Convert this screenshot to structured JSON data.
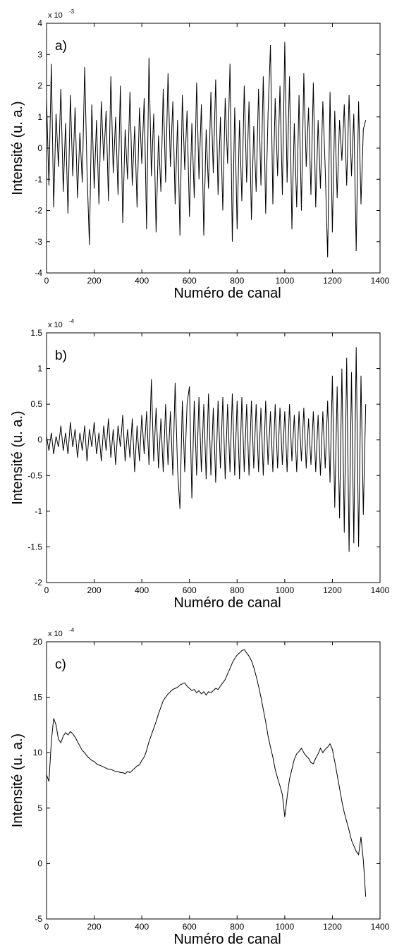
{
  "chart_data": [
    {
      "type": "line",
      "panel_label": "a)",
      "xlabel": "Numéro de canal",
      "ylabel": "Intensité (u. a.)",
      "multiplier": "x 10",
      "exponent": "-3",
      "xlim": [
        0,
        1400
      ],
      "ylim": [
        -4,
        4
      ],
      "xticks": [
        "0",
        "200",
        "400",
        "600",
        "800",
        "1000",
        "1200",
        "1400"
      ],
      "yticks": [
        "-4",
        "-3",
        "-2",
        "-1",
        "0",
        "1",
        "2",
        "3",
        "4"
      ],
      "grid": false,
      "series": [
        {
          "x": [
            0,
            10,
            20,
            30,
            40,
            50,
            60,
            70,
            80,
            90,
            100,
            110,
            120,
            130,
            140,
            150,
            160,
            170,
            180,
            190,
            200,
            210,
            220,
            230,
            240,
            250,
            260,
            270,
            280,
            290,
            300,
            310,
            320,
            330,
            340,
            350,
            360,
            370,
            380,
            390,
            400,
            410,
            420,
            430,
            440,
            450,
            460,
            470,
            480,
            490,
            500,
            510,
            520,
            530,
            540,
            550,
            560,
            570,
            580,
            590,
            600,
            610,
            620,
            630,
            640,
            650,
            660,
            670,
            680,
            690,
            700,
            710,
            720,
            730,
            740,
            750,
            760,
            770,
            780,
            790,
            800,
            810,
            820,
            830,
            840,
            850,
            860,
            870,
            880,
            890,
            900,
            910,
            920,
            930,
            940,
            950,
            960,
            970,
            980,
            990,
            1000,
            1010,
            1020,
            1030,
            1040,
            1050,
            1060,
            1070,
            1080,
            1090,
            1100,
            1110,
            1120,
            1130,
            1140,
            1150,
            1160,
            1170,
            1180,
            1190,
            1200,
            1210,
            1220,
            1230,
            1240,
            1250,
            1260,
            1270,
            1280,
            1290,
            1300,
            1310,
            1320,
            1330,
            1340
          ],
          "y": [
            1.6,
            -1.2,
            2.7,
            -1.9,
            1.1,
            -0.6,
            1.9,
            -1.4,
            0.8,
            -2.1,
            1.7,
            -0.9,
            1.3,
            -1.6,
            0.5,
            -1.1,
            2.6,
            -0.7,
            -3.1,
            1.4,
            -1.3,
            0.9,
            -1.8,
            1.5,
            -0.4,
            1.2,
            -1.7,
            2.3,
            -0.8,
            1.0,
            -1.5,
            2.0,
            -2.4,
            0.6,
            -1.0,
            1.8,
            -1.2,
            0.7,
            -1.9,
            1.3,
            -0.5,
            1.6,
            -2.6,
            2.9,
            -0.9,
            1.1,
            -2.7,
            0.4,
            -1.4,
            1.9,
            -1.1,
            2.4,
            -0.6,
            1.5,
            -1.8,
            0.9,
            -2.8,
            1.7,
            -0.7,
            1.2,
            -2.2,
            0.8,
            -1.6,
            2.1,
            -1.0,
            1.4,
            -2.8,
            0.6,
            -1.3,
            1.8,
            -0.8,
            2.2,
            -1.5,
            1.0,
            -2.0,
            1.6,
            -0.5,
            2.7,
            -3.0,
            1.3,
            -2.6,
            0.9,
            -1.7,
            2.0,
            -1.1,
            1.5,
            -2.3,
            0.7,
            -1.4,
            1.9,
            -1.2,
            2.3,
            -2.1,
            1.1,
            3.3,
            -1.8,
            1.6,
            -0.9,
            2.0,
            -1.5,
            3.4,
            -1.1,
            2.3,
            -2.6,
            0.8,
            -1.9,
            1.7,
            -2.0,
            2.4,
            -0.6,
            1.3,
            -1.5,
            2.1,
            -1.9,
            0.9,
            -1.3,
            1.5,
            -0.7,
            -3.5,
            1.8,
            -2.7,
            1.2,
            -1.6,
            0.9,
            -0.4,
            1.4,
            -1.2,
            1.7,
            -0.9,
            1.1,
            -3.3,
            1.5,
            -1.8,
            0.6,
            0.9
          ]
        }
      ]
    },
    {
      "type": "line",
      "panel_label": "b)",
      "xlabel": "Numéro de canal",
      "ylabel": "Intensité (u. a.)",
      "multiplier": "x 10",
      "exponent": "-4",
      "xlim": [
        0,
        1400
      ],
      "ylim": [
        -2,
        1.5
      ],
      "xticks": [
        "0",
        "200",
        "400",
        "600",
        "800",
        "1000",
        "1200",
        "1400"
      ],
      "yticks": [
        "-2",
        "-1.5",
        "-1",
        "-0.5",
        "0",
        "0.5",
        "1",
        "1.5"
      ],
      "grid": false,
      "series": [
        {
          "x": [
            0,
            10,
            20,
            30,
            40,
            50,
            60,
            70,
            80,
            90,
            100,
            110,
            120,
            130,
            140,
            150,
            160,
            170,
            180,
            190,
            200,
            210,
            220,
            230,
            240,
            250,
            260,
            270,
            280,
            290,
            300,
            310,
            320,
            330,
            340,
            350,
            360,
            370,
            380,
            390,
            400,
            410,
            420,
            430,
            440,
            450,
            460,
            470,
            480,
            490,
            500,
            510,
            520,
            530,
            540,
            550,
            560,
            570,
            580,
            590,
            600,
            610,
            620,
            630,
            640,
            650,
            660,
            670,
            680,
            690,
            700,
            710,
            720,
            730,
            740,
            750,
            760,
            770,
            780,
            790,
            800,
            810,
            820,
            830,
            840,
            850,
            860,
            870,
            880,
            890,
            900,
            910,
            920,
            930,
            940,
            950,
            960,
            970,
            980,
            990,
            1000,
            1010,
            1020,
            1030,
            1040,
            1050,
            1060,
            1070,
            1080,
            1090,
            1100,
            1110,
            1120,
            1130,
            1140,
            1150,
            1160,
            1170,
            1180,
            1190,
            1200,
            1210,
            1220,
            1230,
            1240,
            1250,
            1260,
            1270,
            1280,
            1290,
            1300,
            1310,
            1320,
            1330,
            1340
          ],
          "y": [
            0.05,
            -0.15,
            0.1,
            -0.2,
            0.05,
            -0.1,
            0.2,
            -0.15,
            0.1,
            -0.2,
            0.25,
            -0.1,
            0.15,
            -0.25,
            0.1,
            -0.15,
            0.2,
            -0.3,
            0.15,
            -0.1,
            0.25,
            -0.2,
            0.1,
            -0.3,
            0.2,
            -0.15,
            0.3,
            -0.25,
            0.15,
            -0.35,
            0.2,
            -0.1,
            0.35,
            -0.3,
            0.15,
            -0.25,
            0.3,
            -0.45,
            0.2,
            -0.3,
            0.35,
            -0.2,
            0.4,
            -0.35,
            0.85,
            -0.3,
            0.45,
            -0.4,
            0.3,
            -0.45,
            0.5,
            -0.35,
            0.4,
            -0.5,
            0.8,
            -0.4,
            -0.97,
            0.55,
            -0.45,
            0.5,
            0.75,
            -0.82,
            0.55,
            -0.5,
            0.6,
            -0.45,
            0.5,
            -0.55,
            0.65,
            -0.5,
            0.45,
            -0.6,
            0.55,
            -0.4,
            0.6,
            -0.55,
            0.5,
            -0.45,
            0.65,
            -0.5,
            0.55,
            -0.55,
            0.6,
            -0.45,
            0.5,
            -0.5,
            0.55,
            -0.4,
            0.5,
            -0.45,
            0.45,
            -0.5,
            0.55,
            -0.35,
            0.4,
            -0.45,
            0.5,
            -0.4,
            0.45,
            -0.35,
            0.4,
            -0.45,
            0.5,
            -0.3,
            0.35,
            -0.45,
            0.4,
            -0.3,
            0.45,
            -0.4,
            0.3,
            -0.35,
            0.4,
            -0.45,
            0.35,
            -0.5,
            0.4,
            -0.4,
            0.55,
            -0.6,
            0.9,
            -0.95,
            0.75,
            -1.1,
            1.0,
            -1.3,
            1.15,
            -1.57,
            0.95,
            -1.45,
            1.3,
            -1.5,
            0.9,
            -1.05,
            0.5
          ]
        }
      ]
    },
    {
      "type": "line",
      "panel_label": "c)",
      "xlabel": "Numéro de canal",
      "ylabel": "Intensité (u. a.)",
      "multiplier": "x 10",
      "exponent": "-4",
      "xlim": [
        0,
        1400
      ],
      "ylim": [
        -5,
        20
      ],
      "xticks": [
        "0",
        "200",
        "400",
        "600",
        "800",
        "1000",
        "1200",
        "1400"
      ],
      "yticks": [
        "-5",
        "0",
        "5",
        "10",
        "15",
        "20"
      ],
      "grid": false,
      "series": [
        {
          "x": [
            0,
            10,
            20,
            30,
            40,
            50,
            60,
            70,
            80,
            90,
            100,
            110,
            120,
            130,
            140,
            150,
            160,
            170,
            180,
            190,
            200,
            210,
            220,
            230,
            240,
            250,
            260,
            270,
            280,
            290,
            300,
            310,
            320,
            330,
            340,
            350,
            360,
            370,
            380,
            390,
            400,
            410,
            420,
            430,
            440,
            450,
            460,
            470,
            480,
            490,
            500,
            510,
            520,
            530,
            540,
            550,
            560,
            570,
            580,
            590,
            600,
            610,
            620,
            630,
            640,
            650,
            660,
            670,
            680,
            690,
            700,
            710,
            720,
            730,
            740,
            750,
            760,
            770,
            780,
            790,
            800,
            810,
            820,
            830,
            840,
            850,
            860,
            870,
            880,
            890,
            900,
            910,
            920,
            930,
            940,
            950,
            960,
            970,
            980,
            990,
            1000,
            1010,
            1020,
            1030,
            1040,
            1050,
            1060,
            1070,
            1080,
            1090,
            1100,
            1110,
            1120,
            1130,
            1140,
            1150,
            1160,
            1170,
            1180,
            1190,
            1200,
            1210,
            1220,
            1230,
            1240,
            1250,
            1260,
            1270,
            1280,
            1290,
            1300,
            1310,
            1320,
            1330,
            1340
          ],
          "y": [
            8.0,
            7.4,
            11.0,
            13.1,
            12.5,
            11.2,
            10.9,
            11.5,
            11.8,
            11.6,
            11.9,
            11.7,
            11.4,
            11.0,
            10.6,
            10.2,
            10.0,
            9.7,
            9.5,
            9.3,
            9.2,
            9.0,
            8.9,
            8.8,
            8.7,
            8.6,
            8.5,
            8.5,
            8.4,
            8.3,
            8.3,
            8.2,
            8.2,
            8.1,
            8.3,
            8.2,
            8.4,
            8.6,
            8.8,
            8.9,
            9.3,
            9.6,
            10.2,
            11.0,
            11.6,
            12.2,
            12.8,
            13.5,
            14.1,
            14.7,
            15.0,
            15.3,
            15.5,
            15.7,
            15.8,
            15.9,
            16.1,
            16.2,
            16.3,
            16.0,
            15.8,
            15.6,
            15.7,
            15.4,
            15.6,
            15.3,
            15.5,
            15.2,
            15.5,
            15.4,
            15.6,
            15.8,
            15.7,
            16.0,
            16.3,
            16.6,
            17.1,
            17.6,
            18.1,
            18.5,
            18.8,
            19.0,
            19.2,
            19.3,
            19.0,
            18.7,
            18.3,
            17.7,
            16.9,
            16.0,
            15.0,
            13.9,
            12.8,
            11.5,
            10.5,
            9.6,
            8.5,
            7.7,
            7.0,
            6.2,
            4.2,
            6.0,
            7.6,
            8.5,
            9.4,
            9.9,
            10.1,
            10.4,
            10.0,
            9.7,
            9.5,
            9.1,
            9.0,
            9.5,
            9.9,
            10.4,
            10.0,
            10.3,
            10.5,
            10.8,
            10.3,
            9.2,
            8.0,
            6.8,
            5.6,
            4.6,
            3.8,
            3.0,
            2.1,
            1.6,
            1.1,
            0.8,
            2.4,
            0.3,
            -3.0
          ]
        }
      ]
    }
  ]
}
